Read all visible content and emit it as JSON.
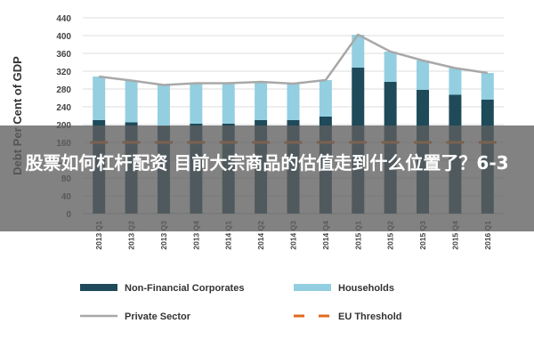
{
  "chart_data": {
    "type": "bar",
    "stacked": true,
    "ylabel": "Debt Per Cent of GDP",
    "ylim": [
      0,
      440
    ],
    "yticks": [
      0,
      40,
      80,
      120,
      160,
      200,
      240,
      280,
      320,
      360,
      400,
      440
    ],
    "grid": true,
    "legend_position": "bottom",
    "categories": [
      "2013 Q1",
      "2013 Q2",
      "2013 Q3",
      "2013 Q4",
      "2014 Q1",
      "2014 Q2",
      "2014 Q3",
      "2014 Q4",
      "2015 Q1",
      "2015 Q2",
      "2015 Q3",
      "2015 Q4",
      "2016 Q1"
    ],
    "series": [
      {
        "name": "Non-Financial Corporates",
        "type": "bar",
        "color": "#1f4a5a",
        "values": [
          210,
          205,
          197,
          202,
          202,
          210,
          210,
          218,
          328,
          296,
          278,
          267,
          256
        ]
      },
      {
        "name": "Households",
        "type": "bar",
        "color": "#93cfe0",
        "values": [
          98,
          94,
          92,
          91,
          91,
          86,
          82,
          82,
          74,
          68,
          66,
          60,
          60
        ]
      },
      {
        "name": "Private Sector",
        "type": "line",
        "color": "#a8a8a8",
        "values": [
          308,
          299,
          289,
          293,
          293,
          296,
          292,
          300,
          402,
          364,
          344,
          327,
          316
        ]
      },
      {
        "name": "EU Threshold",
        "type": "line",
        "style": "dashed",
        "color": "#e06a1e",
        "values": [
          160,
          160,
          160,
          160,
          160,
          160,
          160,
          160,
          160,
          160,
          160,
          160,
          160
        ]
      }
    ]
  },
  "overlay": {
    "title": "股票如何杠杆配资 目前大宗商品的估值走到什么位置了？6-3"
  }
}
